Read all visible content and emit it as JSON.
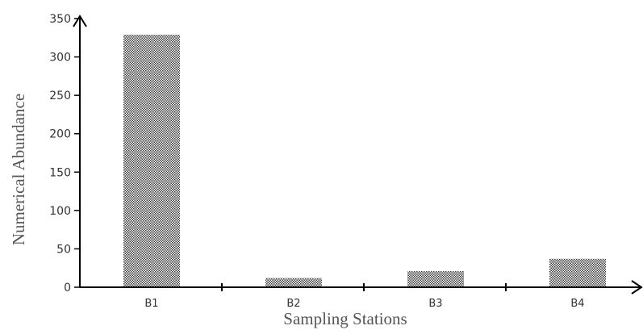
{
  "chart_data": {
    "type": "bar",
    "title": "",
    "xlabel": "Sampling Stations",
    "ylabel": "Numerical Abundance",
    "categories": [
      "B1",
      "B2",
      "B3",
      "B4"
    ],
    "values": [
      329,
      12,
      21,
      37
    ],
    "ylim": [
      0,
      350
    ],
    "yticks": [
      "0",
      "50",
      "100",
      "150",
      "200",
      "250",
      "300",
      "350"
    ],
    "grid": false,
    "legend": "none",
    "bar_pattern": "fine checkered stipple",
    "colors": {
      "axis": "#000000",
      "bar_dark": "#3a3a3a",
      "bar_light": "#ffffff",
      "label_text": "#333333",
      "title_text": "#555555"
    }
  }
}
